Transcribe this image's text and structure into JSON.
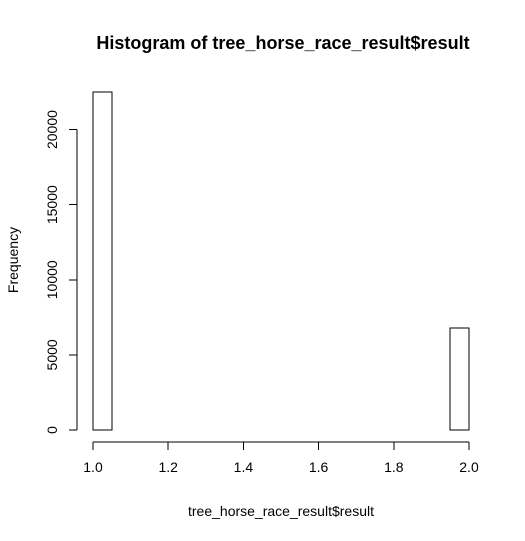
{
  "chart_data": {
    "type": "bar",
    "title": "Histogram of tree_horse_race_result$result",
    "xlabel": "tree_horse_race_result$result",
    "ylabel": "Frequency",
    "xlim": [
      1.0,
      2.0
    ],
    "ylim": [
      0,
      22500
    ],
    "x_ticks": [
      {
        "value": 1.0,
        "label": "1.0"
      },
      {
        "value": 1.2,
        "label": "1.2"
      },
      {
        "value": 1.4,
        "label": "1.4"
      },
      {
        "value": 1.6,
        "label": "1.6"
      },
      {
        "value": 1.8,
        "label": "1.8"
      },
      {
        "value": 2.0,
        "label": "2.0"
      }
    ],
    "y_ticks": [
      {
        "value": 0,
        "label": "0"
      },
      {
        "value": 5000,
        "label": "5000"
      },
      {
        "value": 10000,
        "label": "10000"
      },
      {
        "value": 15000,
        "label": "15000"
      },
      {
        "value": 20000,
        "label": "20000"
      }
    ],
    "bins": [
      {
        "start": 1.0,
        "end": 1.05,
        "count": 22500
      },
      {
        "start": 1.05,
        "end": 1.1,
        "count": 0
      },
      {
        "start": 1.1,
        "end": 1.15,
        "count": 0
      },
      {
        "start": 1.15,
        "end": 1.2,
        "count": 0
      },
      {
        "start": 1.2,
        "end": 1.25,
        "count": 0
      },
      {
        "start": 1.25,
        "end": 1.3,
        "count": 0
      },
      {
        "start": 1.3,
        "end": 1.35,
        "count": 0
      },
      {
        "start": 1.35,
        "end": 1.4,
        "count": 0
      },
      {
        "start": 1.4,
        "end": 1.45,
        "count": 0
      },
      {
        "start": 1.45,
        "end": 1.5,
        "count": 0
      },
      {
        "start": 1.5,
        "end": 1.55,
        "count": 0
      },
      {
        "start": 1.55,
        "end": 1.6,
        "count": 0
      },
      {
        "start": 1.6,
        "end": 1.65,
        "count": 0
      },
      {
        "start": 1.65,
        "end": 1.7,
        "count": 0
      },
      {
        "start": 1.7,
        "end": 1.75,
        "count": 0
      },
      {
        "start": 1.75,
        "end": 1.8,
        "count": 0
      },
      {
        "start": 1.8,
        "end": 1.85,
        "count": 0
      },
      {
        "start": 1.85,
        "end": 1.9,
        "count": 0
      },
      {
        "start": 1.9,
        "end": 1.95,
        "count": 0
      },
      {
        "start": 1.95,
        "end": 2.0,
        "count": 6800
      }
    ],
    "grid": false,
    "bar_fill": "#ffffff",
    "bar_stroke": "#000000",
    "axis_color": "#000000"
  }
}
